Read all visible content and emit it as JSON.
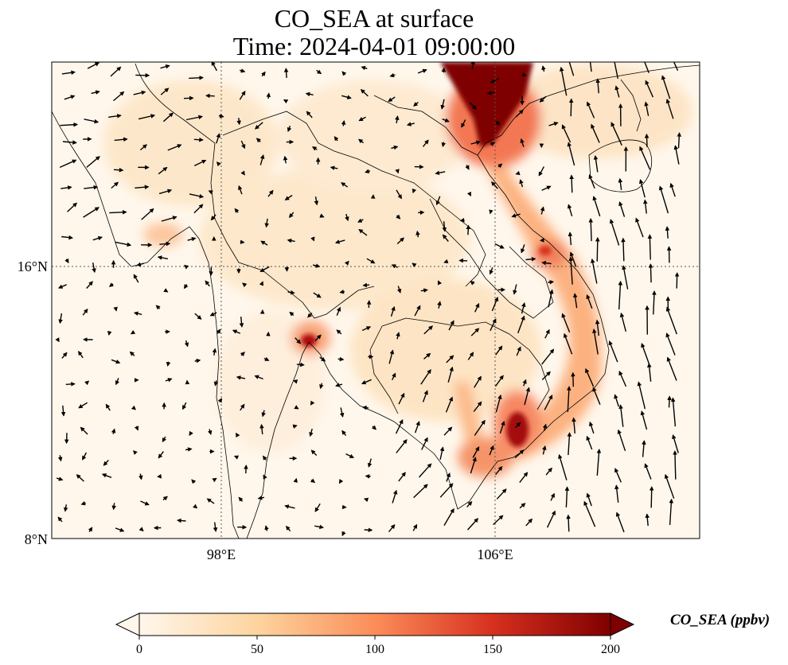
{
  "title": {
    "line1": "CO_SEA at surface",
    "line2": "Time: 2024-04-01 09:00:00"
  },
  "map": {
    "type": "gridded concentration map with wind vectors",
    "lat_ticks": [
      {
        "value": 16,
        "label": "16°N"
      },
      {
        "value": 8,
        "label": "8°N"
      }
    ],
    "lon_ticks": [
      {
        "value": 98,
        "label": "98°E"
      },
      {
        "value": 106,
        "label": "106°E"
      }
    ],
    "extent": {
      "lon_min": 93,
      "lon_max": 112,
      "lat_min": 8,
      "lat_max": 22
    },
    "gridlines": "dotted",
    "hotspots": [
      {
        "name": "Red River Delta / northern Vietnam",
        "lon": 105.8,
        "lat": 21.0,
        "value": 200
      },
      {
        "name": "Ho Chi Minh City",
        "lon": 106.8,
        "lat": 10.8,
        "value": 180
      },
      {
        "name": "Bangkok",
        "lon": 100.5,
        "lat": 13.8,
        "value": 170
      },
      {
        "name": "Central Vietnam coast",
        "lon": 107.2,
        "lat": 16.5,
        "value": 120
      }
    ]
  },
  "colorbar": {
    "label": "CO_SEA (ppbv)",
    "min": 0,
    "max": 200,
    "ticks": [
      "0",
      "50",
      "100",
      "150",
      "200"
    ],
    "colormap": "OrRd",
    "colors": [
      "#fff7ec",
      "#fdd49e",
      "#fc8d59",
      "#d7301f",
      "#7f0000"
    ],
    "extend": "both"
  }
}
